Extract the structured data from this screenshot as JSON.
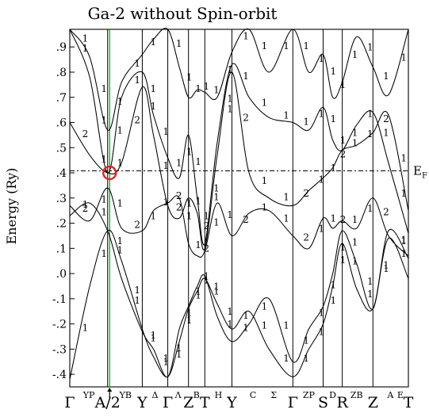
{
  "chart_data": {
    "type": "line",
    "title": "Ga-2 without Spin-orbit",
    "ylabel": "Energy (Ry)",
    "ylim": [
      -0.45,
      0.97
    ],
    "y_ticks": [
      -0.4,
      -0.3,
      -0.2,
      -0.1,
      0.0,
      0.1,
      0.2,
      0.3,
      0.4,
      0.5,
      0.6,
      0.7,
      0.8,
      0.9
    ],
    "y_tick_labels": [
      "-.4",
      "-.3",
      "-.2",
      "-.1",
      ".0",
      ".1",
      ".2",
      ".3",
      ".4",
      ".5",
      ".6",
      ".7",
      ".8",
      ".9"
    ],
    "fermi_level": 0.408,
    "fermi_label": "E",
    "fermi_label_sub": "F",
    "k_points": [
      {
        "label": "Γ",
        "x": 0.0
      },
      {
        "label": "A/2",
        "x": 0.95
      },
      {
        "label": "Y",
        "x": 1.82
      },
      {
        "label": "Γ",
        "x": 2.46
      },
      {
        "label": "Z",
        "x": 2.98
      },
      {
        "label": "T",
        "x": 3.39
      },
      {
        "label": "Y",
        "x": 4.07
      },
      {
        "label": "Γ",
        "x": 5.6
      },
      {
        "label": "S",
        "x": 6.36
      },
      {
        "label": "R",
        "x": 6.84
      },
      {
        "label": "Z",
        "x": 7.61
      },
      {
        "label": "T",
        "x": 8.5
      }
    ],
    "segment_labels": [
      {
        "label": "YP",
        "x": 0.48
      },
      {
        "label": "YB",
        "x": 1.4
      },
      {
        "label": "Δ",
        "x": 2.14
      },
      {
        "label": "Λ",
        "x": 2.72
      },
      {
        "label": "B",
        "x": 3.18
      },
      {
        "label": "H",
        "x": 3.73
      },
      {
        "label": "C",
        "x": 4.6
      },
      {
        "label": "Σ",
        "x": 5.12
      },
      {
        "label": "ZP",
        "x": 6.0
      },
      {
        "label": "D",
        "x": 6.6
      },
      {
        "label": "ZB",
        "x": 7.2
      },
      {
        "label": "A",
        "x": 8.05
      },
      {
        "label": "E",
        "x": 8.3
      }
    ],
    "x_range": [
      0.0,
      8.5
    ],
    "highlight_line_x": 1.0,
    "marker": {
      "x": 1.0,
      "y": 0.4
    },
    "series": [
      {
        "x": [
          0,
          0.5,
          0.95,
          1.3,
          1.82,
          2.1,
          2.46,
          2.75,
          2.98,
          3.2,
          3.39,
          3.7,
          4.07,
          4.5,
          5.0,
          5.6,
          6.0,
          6.36,
          6.6,
          6.84,
          7.2,
          7.61,
          8.0,
          8.5
        ],
        "y": [
          -0.42,
          -0.05,
          0.17,
          0.05,
          -0.22,
          -0.33,
          -0.41,
          -0.27,
          -0.14,
          -0.07,
          -0.02,
          -0.12,
          -0.22,
          -0.15,
          -0.3,
          -0.41,
          -0.3,
          -0.2,
          -0.05,
          0.12,
          -0.06,
          -0.14,
          0.14,
          -0.02
        ]
      },
      {
        "x": [
          0,
          0.5,
          0.95,
          1.3,
          1.82,
          2.1,
          2.46,
          2.75,
          2.98,
          3.2,
          3.39,
          3.7,
          4.07,
          4.5,
          5.0,
          5.6,
          6.0,
          6.36,
          6.6,
          6.84,
          7.2,
          7.61,
          8.0,
          8.5
        ],
        "y": [
          0.23,
          0.28,
          0.17,
          -0.02,
          -0.23,
          -0.3,
          -0.41,
          -0.22,
          -0.13,
          -0.05,
          -0.01,
          -0.17,
          -0.27,
          -0.2,
          -0.1,
          -0.35,
          -0.22,
          -0.13,
          0.0,
          0.17,
          0.04,
          -0.14,
          0.17,
          0.06
        ]
      },
      {
        "x": [
          0,
          0.5,
          0.95,
          1.3,
          1.82,
          2.1,
          2.46,
          2.75,
          2.98,
          3.2,
          3.39,
          3.7,
          4.07,
          4.5,
          5.0,
          5.6,
          6.0,
          6.36,
          6.6,
          6.84,
          7.2,
          7.61,
          8.0,
          8.5
        ],
        "y": [
          0.27,
          0.21,
          0.34,
          0.18,
          0.17,
          0.25,
          0.28,
          0.3,
          0.12,
          0.07,
          0.09,
          0.28,
          0.15,
          0.24,
          0.25,
          0.15,
          0.1,
          0.22,
          0.18,
          0.21,
          0.18,
          0.3,
          0.15,
          0.07
        ]
      },
      {
        "x": [
          0,
          0.5,
          0.95,
          1.3,
          1.82,
          2.1,
          2.46,
          2.75,
          2.98,
          3.2,
          3.39,
          3.7,
          4.07,
          4.5,
          5.0,
          5.6,
          6.0,
          6.36,
          6.6,
          6.84,
          7.2,
          7.61,
          8.0,
          8.5
        ],
        "y": [
          0.6,
          0.47,
          0.4,
          0.44,
          0.74,
          0.55,
          0.27,
          0.22,
          0.3,
          0.24,
          0.1,
          0.47,
          0.8,
          0.4,
          0.3,
          0.27,
          0.33,
          0.38,
          0.42,
          0.49,
          0.51,
          0.56,
          0.63,
          0.25
        ]
      },
      {
        "x": [
          0,
          0.5,
          0.95,
          1.3,
          1.82,
          2.1,
          2.46,
          2.75,
          2.98,
          3.2,
          3.39,
          3.7,
          4.07,
          4.5,
          5.0,
          5.6,
          6.0,
          6.36,
          6.6,
          6.84,
          7.2,
          7.61,
          8.0,
          8.5
        ],
        "y": [
          0.97,
          0.78,
          0.4,
          0.7,
          0.8,
          0.63,
          0.46,
          0.38,
          0.55,
          0.3,
          0.12,
          0.52,
          0.83,
          0.7,
          0.62,
          0.6,
          0.57,
          0.66,
          0.53,
          0.49,
          0.59,
          0.64,
          0.44,
          0.16
        ]
      },
      {
        "x": [
          0,
          0.5,
          0.95,
          1.3,
          1.82,
          2.1,
          2.46,
          2.75,
          2.98,
          3.2,
          3.39,
          3.7,
          4.07,
          4.5,
          5.0,
          5.6,
          6.0,
          6.36,
          6.6,
          6.84,
          7.2,
          7.61,
          8.0,
          8.5
        ],
        "y": [
          0.97,
          0.86,
          0.57,
          0.76,
          0.87,
          0.93,
          0.97,
          0.82,
          0.7,
          0.73,
          0.72,
          0.7,
          0.88,
          0.97,
          0.8,
          0.97,
          0.8,
          0.87,
          0.7,
          0.76,
          0.94,
          0.82,
          0.71,
          0.97
        ]
      }
    ]
  }
}
